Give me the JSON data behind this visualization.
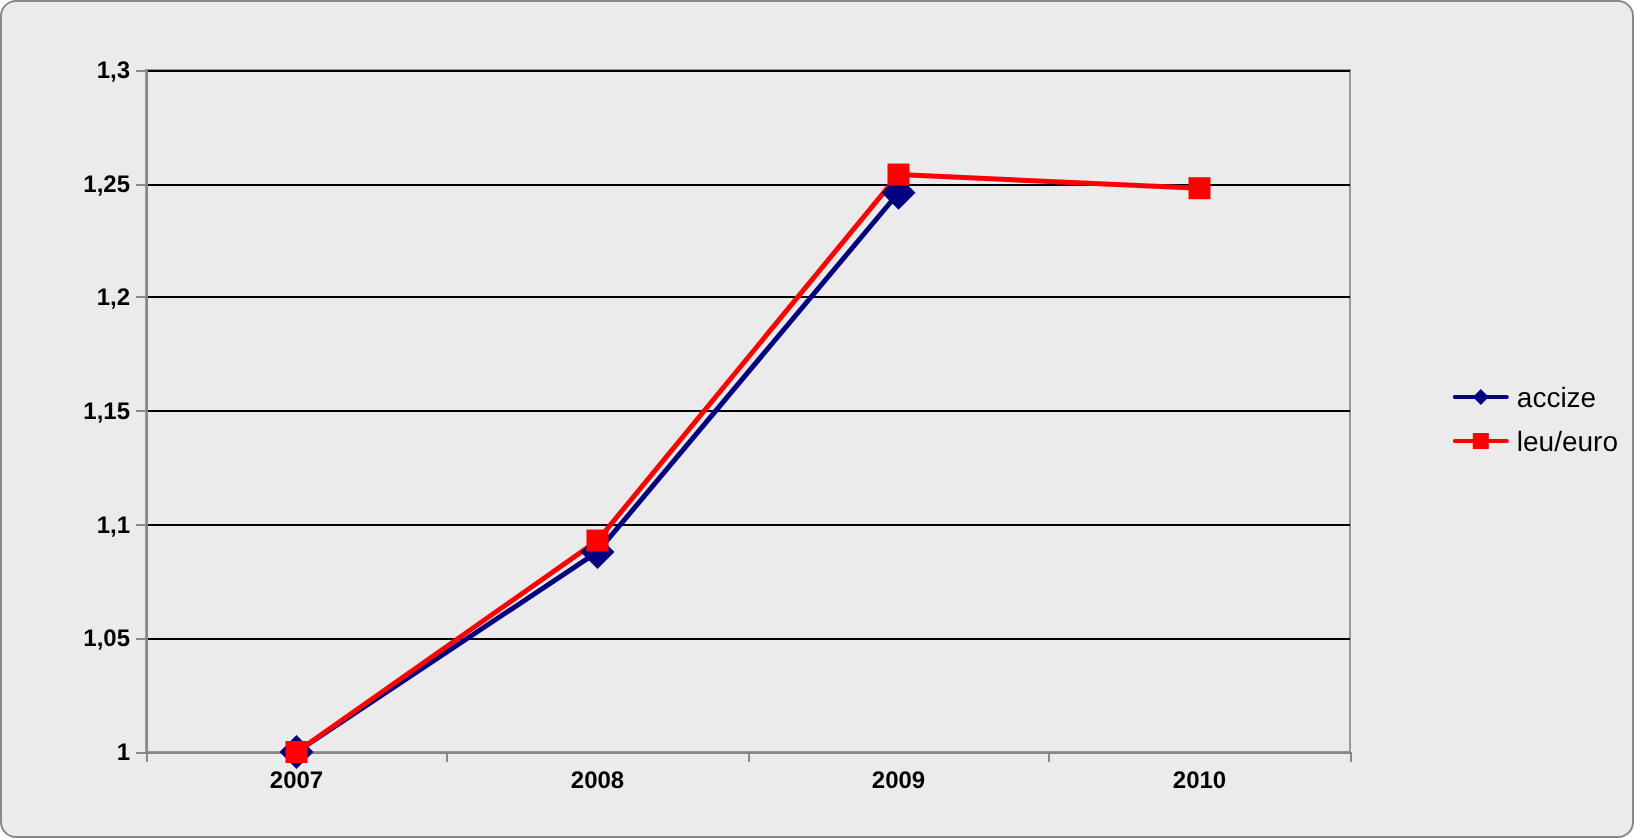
{
  "chart_data": {
    "type": "line",
    "categories": [
      "2007",
      "2008",
      "2009",
      "2010"
    ],
    "series": [
      {
        "name": "accize",
        "color": "#000080",
        "marker": "diamond",
        "values": [
          1,
          1.088,
          1.246,
          null
        ]
      },
      {
        "name": "leu/euro",
        "color": "#ff0000",
        "marker": "square",
        "values": [
          1,
          1.093,
          1.254,
          1.248
        ]
      }
    ],
    "ylim": [
      1,
      1.3
    ],
    "yticks": [
      {
        "value": 1,
        "label": "1"
      },
      {
        "value": 1.05,
        "label": "1,05"
      },
      {
        "value": 1.1,
        "label": "1,1"
      },
      {
        "value": 1.15,
        "label": "1,15"
      },
      {
        "value": 1.2,
        "label": "1,2"
      },
      {
        "value": 1.25,
        "label": "1,25"
      },
      {
        "value": 1.3,
        "label": "1,3"
      }
    ],
    "grid": "y",
    "legend": "right"
  }
}
